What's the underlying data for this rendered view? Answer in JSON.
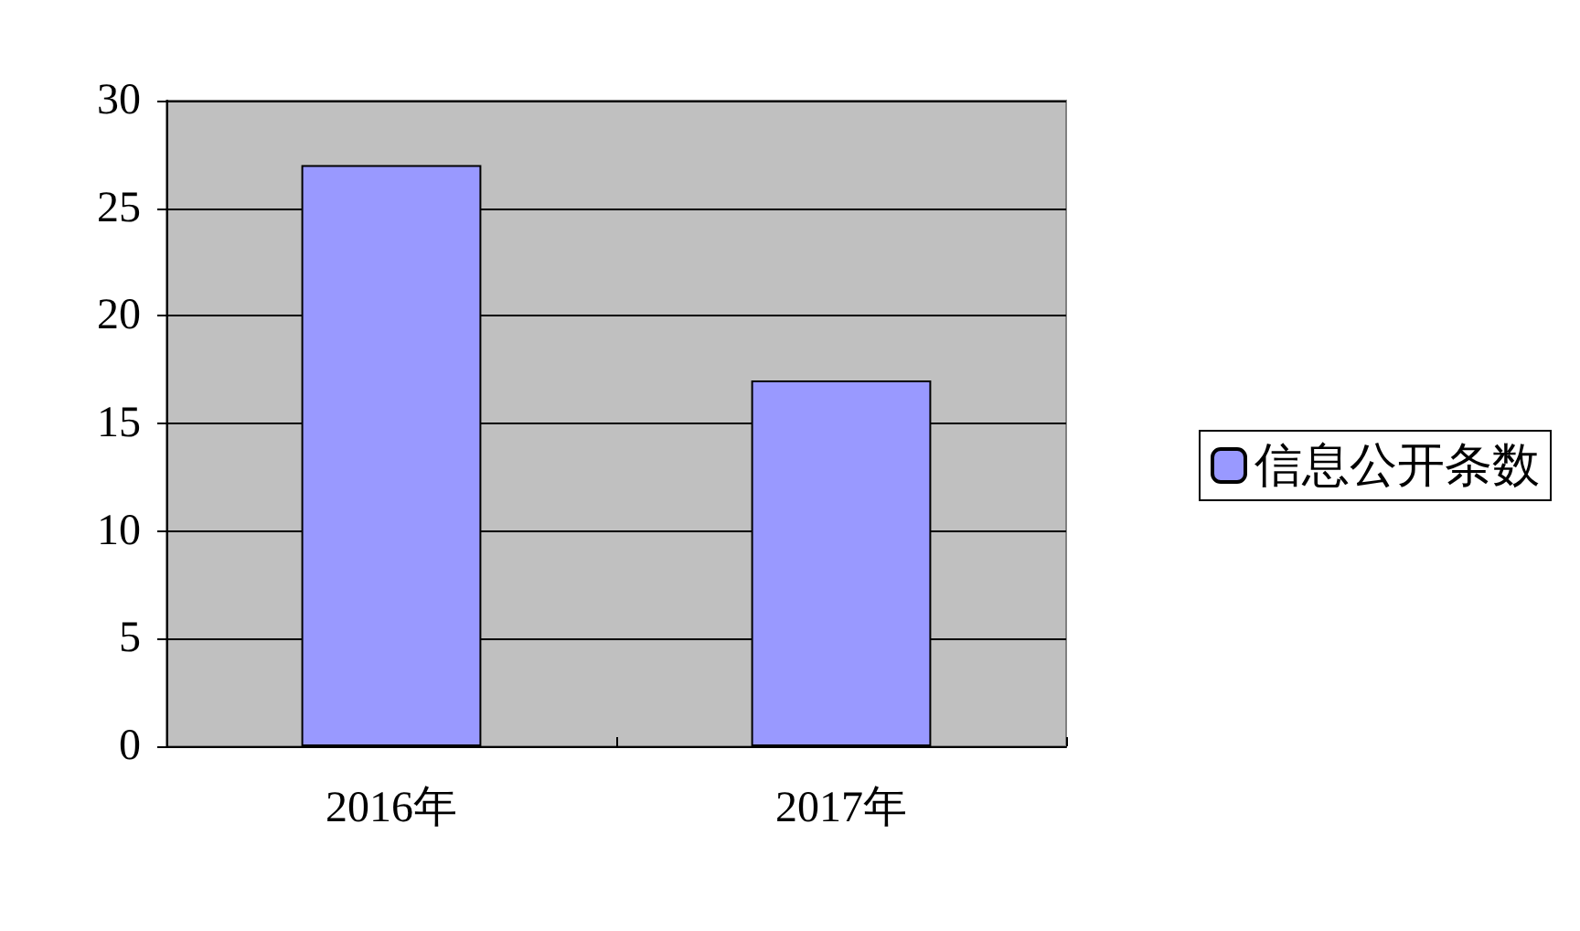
{
  "chart_data": {
    "type": "bar",
    "categories": [
      "2016年",
      "2017年"
    ],
    "series": [
      {
        "name": "信息公开条数",
        "color": "#9999ff",
        "values": [
          27,
          17
        ]
      }
    ],
    "ylim": [
      0,
      30
    ],
    "yticks": [
      0,
      5,
      10,
      15,
      20,
      25,
      30
    ],
    "grid": "y",
    "legend": "right"
  }
}
